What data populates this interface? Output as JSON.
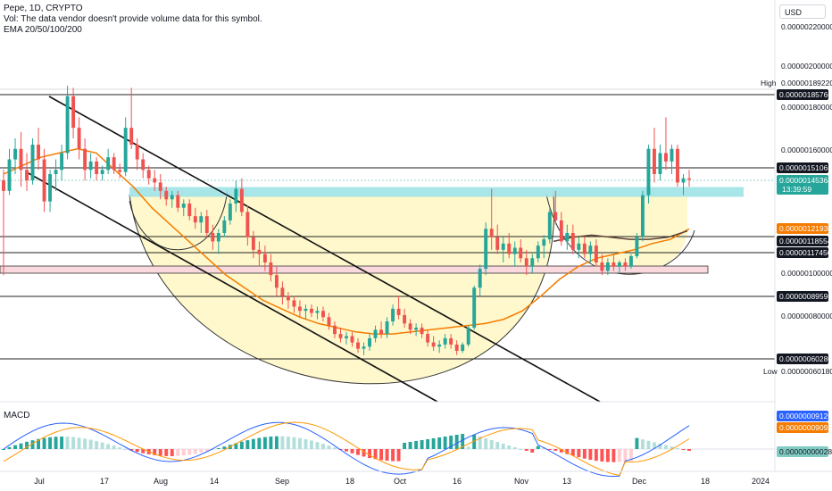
{
  "legend": {
    "symbol": "Pepe, 1D, CRYPTO",
    "volume_note": "Vol: The data vendor doesn't provide volume data for this symbol.",
    "ema": "EMA 20/50/100/200"
  },
  "currency": "USD",
  "colors": {
    "up": "#26a69a",
    "down": "#ef5350",
    "ema_orange": "#f57c00",
    "ema_dark": "#5d4037",
    "cup_fill": "#fff8cc",
    "zone_cyan": "#9fe3e8",
    "zone_pink": "#f9d9de",
    "macd_blue": "#2962ff",
    "macd_orange": "#ff9800"
  },
  "price_axis": {
    "ticks": [
      "0.00000220000",
      "0.00000200000",
      "0.00000180000",
      "0.00000160000",
      "0.00000100000",
      "0.00000080000"
    ],
    "high_label": "High",
    "high_value": "0.00000189220",
    "low_label": "Low",
    "low_value": "0.00000060180",
    "tags": [
      {
        "value": "0.00000185766",
        "style": "black"
      },
      {
        "value": "0.00000151065",
        "style": "black"
      },
      {
        "value": "0.00000145364",
        "style": "green",
        "sub": "13:39:59"
      },
      {
        "value": "0.00000121930",
        "style": "orange"
      },
      {
        "value": "0.00000118554",
        "style": "black"
      },
      {
        "value": "0.00000117456",
        "style": "black"
      },
      {
        "value": "0.00000089596",
        "style": "black"
      },
      {
        "value": "0.00000060280",
        "style": "black"
      }
    ]
  },
  "macd": {
    "label": "MACD",
    "tags": [
      {
        "value": "0.00000009120",
        "style": "blue"
      },
      {
        "value": "0.00000009092",
        "style": "orange"
      },
      {
        "value": "0.00000000028",
        "style": "teal"
      }
    ]
  },
  "time_axis": {
    "labels": [
      "Jul",
      "17",
      "Aug",
      "14",
      "Sep",
      "18",
      "Oct",
      "16",
      "Nov",
      "13",
      "Dec",
      "18",
      "2024"
    ]
  },
  "chart_data": {
    "type": "candlestick",
    "title": "Pepe, 1D, CRYPTO",
    "indicator": "EMA 20/50/100/200",
    "ylim": [
      5.5e-07,
      2.3e-06
    ],
    "x": [
      "Jul",
      "17",
      "Aug",
      "14",
      "Sep",
      "18",
      "Oct",
      "16",
      "Nov",
      "13",
      "Dec",
      "18",
      "2024"
    ],
    "horizontal_levels": [
      1.85766e-06,
      1.51065e-06,
      1.18554e-06,
      1.17456e-06,
      8.9596e-07,
      6.028e-07
    ],
    "zones": [
      {
        "name": "resistance",
        "from": 1.37e-06,
        "to": 1.41e-06
      },
      {
        "name": "support",
        "from": 1.01e-06,
        "to": 1.03e-06
      }
    ],
    "ohlc": [
      [
        1.45e-06,
        1.5e-06,
        1e-06,
        1.4e-06
      ],
      [
        1.4e-06,
        1.6e-06,
        1.38e-06,
        1.55e-06
      ],
      [
        1.55e-06,
        1.65e-06,
        1.48e-06,
        1.6e-06
      ],
      [
        1.6e-06,
        1.68e-06,
        1.42e-06,
        1.5e-06
      ],
      [
        1.5e-06,
        1.58e-06,
        1.4e-06,
        1.45e-06
      ],
      [
        1.45e-06,
        1.65e-06,
        1.43e-06,
        1.62e-06
      ],
      [
        1.62e-06,
        1.7e-06,
        1.5e-06,
        1.55e-06
      ],
      [
        1.55e-06,
        1.6e-06,
        1.3e-06,
        1.35e-06
      ],
      [
        1.35e-06,
        1.5e-06,
        1.3e-06,
        1.48e-06
      ],
      [
        1.48e-06,
        1.55e-06,
        1.4e-06,
        1.5e-06
      ],
      [
        1.5e-06,
        1.62e-06,
        1.45e-06,
        1.58e-06
      ],
      [
        1.58e-06,
        1.9e-06,
        1.55e-06,
        1.85e-06
      ],
      [
        1.85e-06,
        1.89e-06,
        1.65e-06,
        1.7e-06
      ],
      [
        1.7e-06,
        1.75e-06,
        1.55e-06,
        1.6e-06
      ],
      [
        1.6e-06,
        1.65e-06,
        1.45e-06,
        1.5e-06
      ],
      [
        1.5e-06,
        1.58e-06,
        1.46e-06,
        1.54e-06
      ],
      [
        1.54e-06,
        1.56e-06,
        1.45e-06,
        1.48e-06
      ],
      [
        1.48e-06,
        1.52e-06,
        1.45e-06,
        1.5e-06
      ],
      [
        1.5e-06,
        1.6e-06,
        1.48e-06,
        1.56e-06
      ],
      [
        1.56e-06,
        1.58e-06,
        1.48e-06,
        1.5e-06
      ],
      [
        1.5e-06,
        1.53e-06,
        1.46e-06,
        1.49e-06
      ],
      [
        1.49e-06,
        1.75e-06,
        1.47e-06,
        1.7e-06
      ],
      [
        1.7e-06,
        1.89e-06,
        1.6e-06,
        1.62e-06
      ],
      [
        1.62e-06,
        1.65e-06,
        1.5e-06,
        1.55e-06
      ],
      [
        1.55e-06,
        1.58e-06,
        1.46e-06,
        1.5e-06
      ],
      [
        1.5e-06,
        1.52e-06,
        1.43e-06,
        1.46e-06
      ],
      [
        1.46e-06,
        1.5e-06,
        1.4e-06,
        1.44e-06
      ],
      [
        1.44e-06,
        1.48e-06,
        1.36e-06,
        1.4e-06
      ],
      [
        1.4e-06,
        1.42e-06,
        1.33e-06,
        1.36e-06
      ],
      [
        1.36e-06,
        1.4e-06,
        1.32e-06,
        1.38e-06
      ],
      [
        1.38e-06,
        1.4e-06,
        1.3e-06,
        1.32e-06
      ],
      [
        1.32e-06,
        1.36e-06,
        1.28e-06,
        1.34e-06
      ],
      [
        1.34e-06,
        1.36e-06,
        1.26e-06,
        1.28e-06
      ],
      [
        1.28e-06,
        1.32e-06,
        1.22e-06,
        1.25e-06
      ],
      [
        1.25e-06,
        1.3e-06,
        1.2e-06,
        1.28e-06
      ],
      [
        1.28e-06,
        1.31e-06,
        1.18e-06,
        1.2e-06
      ],
      [
        1.2e-06,
        1.24e-06,
        1.12e-06,
        1.16e-06
      ],
      [
        1.16e-06,
        1.22e-06,
        1.1e-06,
        1.2e-06
      ],
      [
        1.2e-06,
        1.28e-06,
        1.18e-06,
        1.26e-06
      ],
      [
        1.26e-06,
        1.36e-06,
        1.24e-06,
        1.34e-06
      ],
      [
        1.34e-06,
        1.45e-06,
        1.3e-06,
        1.41e-06
      ],
      [
        1.41e-06,
        1.46e-06,
        1.28e-06,
        1.3e-06
      ],
      [
        1.3e-06,
        1.33e-06,
        1.14e-06,
        1.18e-06
      ],
      [
        1.18e-06,
        1.21e-06,
        1.08e-06,
        1.12e-06
      ],
      [
        1.12e-06,
        1.16e-06,
        1.04e-06,
        1.1e-06
      ],
      [
        1.1e-06,
        1.14e-06,
        1.02e-06,
        1.06e-06
      ],
      [
        1.06e-06,
        1.1e-06,
        9.7e-07,
        1e-06
      ],
      [
        1e-06,
        1.04e-06,
        9e-07,
        9.4e-07
      ],
      [
        9.4e-07,
        9.7e-07,
        8.6e-07,
        9e-07
      ],
      [
        9e-07,
        9.2e-07,
        8.4e-07,
        8.8e-07
      ],
      [
        8.8e-07,
        9e-07,
        8.2e-07,
        8.5e-07
      ],
      [
        8.5e-07,
        8.8e-07,
        8e-07,
        8.3e-07
      ],
      [
        8.3e-07,
        8.6e-07,
        7.9e-07,
        8.4e-07
      ],
      [
        8.4e-07,
        8.6e-07,
        8e-07,
        8.2e-07
      ],
      [
        8.2e-07,
        8.5e-07,
        7.9e-07,
        8.3e-07
      ],
      [
        8.3e-07,
        8.5e-07,
        7.8e-07,
        8e-07
      ],
      [
        8e-07,
        8.2e-07,
        7.4e-07,
        7.6e-07
      ],
      [
        7.6e-07,
        7.8e-07,
        7e-07,
        7.2e-07
      ],
      [
        7.2e-07,
        7.5e-07,
        6.8e-07,
        7e-07
      ],
      [
        7e-07,
        7.3e-07,
        6.7e-07,
        7.1e-07
      ],
      [
        7.1e-07,
        7.3e-07,
        6.6e-07,
        6.8e-07
      ],
      [
        6.8e-07,
        7e-07,
        6.3e-07,
        6.5e-07
      ],
      [
        6.5e-07,
        6.8e-07,
        6.2e-07,
        6.6e-07
      ],
      [
        6.6e-07,
        7.2e-07,
        6.4e-07,
        7e-07
      ],
      [
        7e-07,
        7.6e-07,
        6.8e-07,
        7.4e-07
      ],
      [
        7.4e-07,
        7.8e-07,
        7e-07,
        7.2e-07
      ],
      [
        7.2e-07,
        8e-07,
        7e-07,
        7.8e-07
      ],
      [
        7.8e-07,
        8.6e-07,
        7.6e-07,
        8.4e-07
      ],
      [
        8.4e-07,
        9e-07,
        7.9e-07,
        8.1e-07
      ],
      [
        8.1e-07,
        8.4e-07,
        7.5e-07,
        7.7e-07
      ],
      [
        7.7e-07,
        7.9e-07,
        7.2e-07,
        7.4e-07
      ],
      [
        7.4e-07,
        7.7e-07,
        7.1e-07,
        7.5e-07
      ],
      [
        7.5e-07,
        7.7e-07,
        7e-07,
        7.2e-07
      ],
      [
        7.2e-07,
        7.4e-07,
        6.6e-07,
        6.8e-07
      ],
      [
        6.8e-07,
        7.1e-07,
        6.4e-07,
        6.6e-07
      ],
      [
        6.6e-07,
        6.9e-07,
        6.3e-07,
        6.7e-07
      ],
      [
        6.7e-07,
        7.2e-07,
        6.5e-07,
        7e-07
      ],
      [
        7e-07,
        7.2e-07,
        6.5e-07,
        6.7e-07
      ],
      [
        6.7e-07,
        6.9e-07,
        6.2e-07,
        6.4e-07
      ],
      [
        6.4e-07,
        6.8e-07,
        6.3e-07,
        6.7e-07
      ],
      [
        6.7e-07,
        7.6e-07,
        6.6e-07,
        7.5e-07
      ],
      [
        7.5e-07,
        9.5e-07,
        7.4e-07,
        9.4e-07
      ],
      [
        9.4e-07,
        1.05e-06,
        9e-07,
        1.03e-06
      ],
      [
        1.03e-06,
        1.25e-06,
        1e-06,
        1.22e-06
      ],
      [
        1.22e-06,
        1.41e-06,
        1.12e-06,
        1.18e-06
      ],
      [
        1.18e-06,
        1.24e-06,
        1.1e-06,
        1.12e-06
      ],
      [
        1.12e-06,
        1.18e-06,
        1.06e-06,
        1.15e-06
      ],
      [
        1.15e-06,
        1.2e-06,
        1.08e-06,
        1.1e-06
      ],
      [
        1.1e-06,
        1.16e-06,
        1.04e-06,
        1.13e-06
      ],
      [
        1.13e-06,
        1.17e-06,
        1.06e-06,
        1.08e-06
      ],
      [
        1.08e-06,
        1.12e-06,
        1e-06,
        1.04e-06
      ],
      [
        1.04e-06,
        1.1e-06,
        1.01e-06,
        1.08e-06
      ],
      [
        1.08e-06,
        1.16e-06,
        1.06e-06,
        1.14e-06
      ],
      [
        1.14e-06,
        1.19e-06,
        1.08e-06,
        1.17e-06
      ],
      [
        1.17e-06,
        1.32e-06,
        1.15e-06,
        1.3e-06
      ],
      [
        1.3e-06,
        1.4e-06,
        1.24e-06,
        1.26e-06
      ],
      [
        1.26e-06,
        1.3e-06,
        1.14e-06,
        1.16e-06
      ],
      [
        1.16e-06,
        1.24e-06,
        1.12e-06,
        1.2e-06
      ],
      [
        1.2e-06,
        1.24e-06,
        1.1e-06,
        1.12e-06
      ],
      [
        1.12e-06,
        1.18e-06,
        1.08e-06,
        1.15e-06
      ],
      [
        1.15e-06,
        1.18e-06,
        1.08e-06,
        1.1e-06
      ],
      [
        1.1e-06,
        1.16e-06,
        1.06e-06,
        1.14e-06
      ],
      [
        1.14e-06,
        1.17e-06,
        1.04e-06,
        1.06e-06
      ],
      [
        1.06e-06,
        1.1e-06,
        1e-06,
        1.02e-06
      ],
      [
        1.02e-06,
        1.08e-06,
        1e-06,
        1.06e-06
      ],
      [
        1.06e-06,
        1.1e-06,
        1.02e-06,
        1.04e-06
      ],
      [
        1.04e-06,
        1.07e-06,
        1.01e-06,
        1.06e-06
      ],
      [
        1.06e-06,
        1.08e-06,
        1.02e-06,
        1.04e-06
      ],
      [
        1.04e-06,
        1.1e-06,
        1.03e-06,
        1.09e-06
      ],
      [
        1.09e-06,
        1.2e-06,
        1.08e-06,
        1.18e-06
      ],
      [
        1.18e-06,
        1.4e-06,
        1.16e-06,
        1.38e-06
      ],
      [
        1.38e-06,
        1.62e-06,
        1.34e-06,
        1.6e-06
      ],
      [
        1.6e-06,
        1.7e-06,
        1.44e-06,
        1.48e-06
      ],
      [
        1.48e-06,
        1.62e-06,
        1.45e-06,
        1.58e-06
      ],
      [
        1.58e-06,
        1.75e-06,
        1.5e-06,
        1.54e-06
      ],
      [
        1.54e-06,
        1.62e-06,
        1.48e-06,
        1.6e-06
      ],
      [
        1.6e-06,
        1.62e-06,
        1.42e-06,
        1.44e-06
      ],
      [
        1.44e-06,
        1.48e-06,
        1.38e-06,
        1.46e-06
      ],
      [
        1.46e-06,
        1.5e-06,
        1.42e-06,
        1.45364e-06
      ]
    ],
    "ema20": [
      1.48e-06,
      1.52e-06,
      1.56e-06,
      1.58e-06,
      1.6e-06,
      1.58e-06,
      1.5e-06,
      1.42e-06,
      1.32e-06,
      1.24e-06,
      1.16e-06,
      1.08e-06,
      1e-06,
      9.4e-07,
      8.8e-07,
      8.4e-07,
      8e-07,
      7.7e-07,
      7.5e-07,
      7.3e-07,
      7.2e-07,
      7.2e-07,
      7.3e-07,
      7.4e-07,
      7.5e-07,
      7.6e-07,
      7.7e-07,
      7.9e-07,
      8.3e-07,
      9e-07,
      9.8e-07,
      1.04e-06,
      1.08e-06,
      1.1e-06,
      1.12e-06,
      1.15e-06,
      1.17e-06,
      1.22e-06
    ],
    "ema_flat": [
      1.16e-06,
      1.18e-06,
      1.19e-06,
      1.18e-06,
      1.17e-06,
      1.17e-06,
      1.18e-06,
      1.21e-06
    ]
  }
}
